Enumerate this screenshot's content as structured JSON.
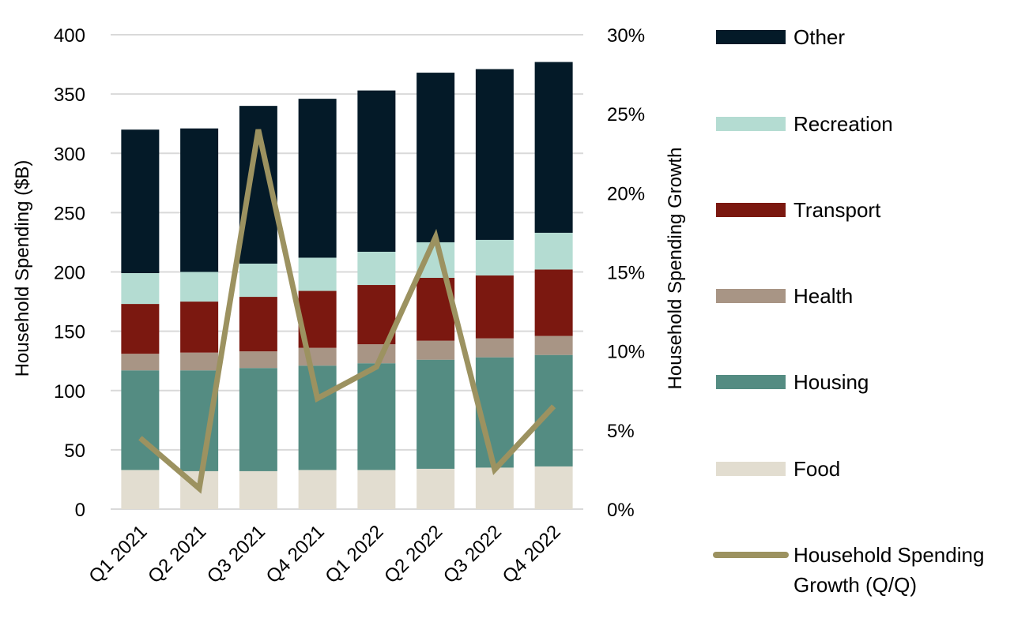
{
  "chart_data": {
    "type": "bar",
    "stacked": true,
    "categories": [
      "Q1 2021",
      "Q2 2021",
      "Q3 2021",
      "Q4 2021",
      "Q1 2022",
      "Q2 2022",
      "Q3 2022",
      "Q4 2022"
    ],
    "series": [
      {
        "name": "Food",
        "color": "#e2ddd0",
        "values": [
          33,
          32,
          32,
          33,
          33,
          34,
          35,
          36
        ]
      },
      {
        "name": "Housing",
        "color": "#548c82",
        "values": [
          84,
          85,
          87,
          88,
          90,
          92,
          93,
          94
        ]
      },
      {
        "name": "Health",
        "color": "#a89585",
        "values": [
          14,
          15,
          14,
          15,
          16,
          16,
          16,
          16
        ]
      },
      {
        "name": "Transport",
        "color": "#7b1810",
        "values": [
          42,
          43,
          46,
          48,
          50,
          53,
          53,
          56
        ]
      },
      {
        "name": "Recreation",
        "color": "#b4dcd2",
        "values": [
          26,
          25,
          28,
          28,
          28,
          30,
          30,
          31
        ]
      },
      {
        "name": "Other",
        "color": "#041a28",
        "values": [
          121,
          121,
          133,
          134,
          136,
          143,
          144,
          144
        ]
      }
    ],
    "line_series": {
      "name": "Household Spending Growth (Q/Q)",
      "color": "#9c9260",
      "axis": "right",
      "values": [
        4.5,
        1.3,
        24.0,
        7.0,
        9.0,
        17.2,
        2.5,
        6.5
      ]
    },
    "ylabel": "Household Spending ($B)",
    "ylabel_right": "Household Spending Growth",
    "ylim": [
      0,
      400
    ],
    "yticks": [
      "0",
      "50",
      "100",
      "150",
      "200",
      "250",
      "300",
      "350",
      "400"
    ],
    "ylim_right": [
      0,
      30
    ],
    "yticks_right": [
      "0%",
      "5%",
      "10%",
      "15%",
      "20%",
      "25%",
      "30%"
    ],
    "grid": true,
    "legend_position": "right",
    "legend": [
      {
        "label": "Other",
        "color": "#041a28",
        "kind": "bar"
      },
      {
        "label": "Recreation",
        "color": "#b4dcd2",
        "kind": "bar"
      },
      {
        "label": "Transport",
        "color": "#7b1810",
        "kind": "bar"
      },
      {
        "label": "Health",
        "color": "#a89585",
        "kind": "bar"
      },
      {
        "label": "Housing",
        "color": "#548c82",
        "kind": "bar"
      },
      {
        "label": "Food",
        "color": "#e2ddd0",
        "kind": "bar"
      },
      {
        "label": "Household Spending",
        "label_line2": "Growth (Q/Q)",
        "color": "#9c9260",
        "kind": "line"
      }
    ]
  }
}
